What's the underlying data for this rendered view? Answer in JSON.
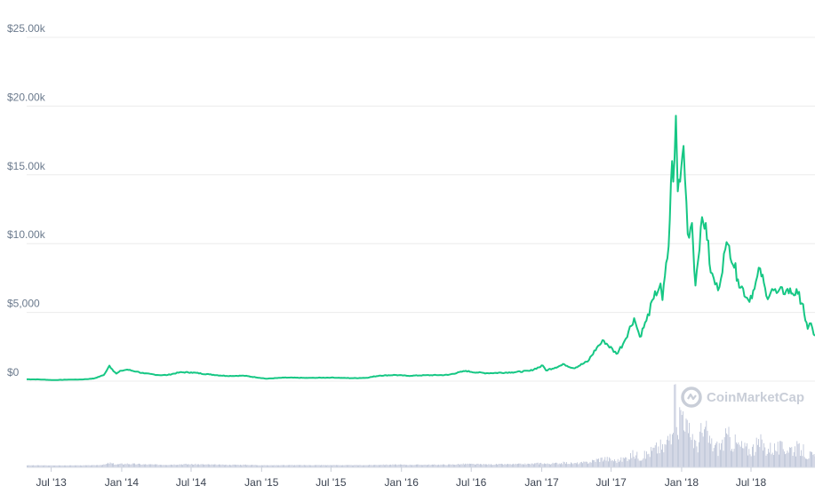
{
  "chart_data": {
    "type": "line",
    "title": "",
    "xlabel": "",
    "ylabel": "",
    "ylim": [
      0,
      25000
    ],
    "y_ticks": [
      {
        "value": 0,
        "label": "$0"
      },
      {
        "value": 5000,
        "label": "$5,000"
      },
      {
        "value": 10000,
        "label": "$10.00k"
      },
      {
        "value": 15000,
        "label": "$15.00k"
      },
      {
        "value": 20000,
        "label": "$20.00k"
      },
      {
        "value": 25000,
        "label": "$25.00k"
      }
    ],
    "x_range": [
      "2013-04-28",
      "2018-12-15"
    ],
    "x_ticks": [
      {
        "date": "2013-07-01",
        "label": "Jul '13"
      },
      {
        "date": "2014-01-01",
        "label": "Jan '14"
      },
      {
        "date": "2014-07-01",
        "label": "Jul '14"
      },
      {
        "date": "2015-01-01",
        "label": "Jan '15"
      },
      {
        "date": "2015-07-01",
        "label": "Jul '15"
      },
      {
        "date": "2016-01-01",
        "label": "Jan '16"
      },
      {
        "date": "2016-07-01",
        "label": "Jul '16"
      },
      {
        "date": "2017-01-01",
        "label": "Jan '17"
      },
      {
        "date": "2017-07-01",
        "label": "Jul '17"
      },
      {
        "date": "2018-01-01",
        "label": "Jan '18"
      },
      {
        "date": "2018-07-01",
        "label": "Jul '18"
      }
    ],
    "grid": true,
    "line_color": "#16c784",
    "volume_color": "#b7bfd4",
    "series": [
      {
        "points": [
          [
            "2013-04-28",
            135
          ],
          [
            "2013-06-01",
            125
          ],
          [
            "2013-07-05",
            80
          ],
          [
            "2013-08-15",
            110
          ],
          [
            "2013-09-20",
            125
          ],
          [
            "2013-10-20",
            190
          ],
          [
            "2013-11-15",
            440
          ],
          [
            "2013-11-30",
            1130
          ],
          [
            "2013-12-07",
            870
          ],
          [
            "2013-12-18",
            550
          ],
          [
            "2013-12-31",
            760
          ],
          [
            "2014-01-15",
            840
          ],
          [
            "2014-02-10",
            690
          ],
          [
            "2014-03-01",
            560
          ],
          [
            "2014-04-10",
            440
          ],
          [
            "2014-05-01",
            450
          ],
          [
            "2014-06-01",
            640
          ],
          [
            "2014-07-01",
            640
          ],
          [
            "2014-08-18",
            490
          ],
          [
            "2014-10-01",
            380
          ],
          [
            "2014-11-15",
            400
          ],
          [
            "2015-01-14",
            180
          ],
          [
            "2015-03-01",
            260
          ],
          [
            "2015-05-01",
            235
          ],
          [
            "2015-07-01",
            260
          ],
          [
            "2015-08-25",
            220
          ],
          [
            "2015-10-01",
            240
          ],
          [
            "2015-11-04",
            400
          ],
          [
            "2015-12-15",
            450
          ],
          [
            "2016-01-15",
            390
          ],
          [
            "2016-03-01",
            430
          ],
          [
            "2016-05-01",
            450
          ],
          [
            "2016-06-17",
            750
          ],
          [
            "2016-07-01",
            670
          ],
          [
            "2016-08-10",
            580
          ],
          [
            "2016-10-15",
            640
          ],
          [
            "2016-12-01",
            750
          ],
          [
            "2017-01-04",
            1130
          ],
          [
            "2017-01-12",
            780
          ],
          [
            "2017-03-01",
            1220
          ],
          [
            "2017-03-25",
            940
          ],
          [
            "2017-05-01",
            1430
          ],
          [
            "2017-05-25",
            2450
          ],
          [
            "2017-06-12",
            2950
          ],
          [
            "2017-07-15",
            1990
          ],
          [
            "2017-08-01",
            2700
          ],
          [
            "2017-08-30",
            4580
          ],
          [
            "2017-09-14",
            3230
          ],
          [
            "2017-10-01",
            4400
          ],
          [
            "2017-10-20",
            6000
          ],
          [
            "2017-11-07",
            7100
          ],
          [
            "2017-11-12",
            5900
          ],
          [
            "2017-11-28",
            9800
          ],
          [
            "2017-12-07",
            16000
          ],
          [
            "2017-12-10",
            14500
          ],
          [
            "2017-12-17",
            19300
          ],
          [
            "2017-12-22",
            13800
          ],
          [
            "2017-12-28",
            14500
          ],
          [
            "2018-01-06",
            17100
          ],
          [
            "2018-01-17",
            10700
          ],
          [
            "2018-01-28",
            11500
          ],
          [
            "2018-02-06",
            6950
          ],
          [
            "2018-02-20",
            11200
          ],
          [
            "2018-03-05",
            11500
          ],
          [
            "2018-03-18",
            7900
          ],
          [
            "2018-04-06",
            6600
          ],
          [
            "2018-04-25",
            9600
          ],
          [
            "2018-05-05",
            9850
          ],
          [
            "2018-05-28",
            7400
          ],
          [
            "2018-06-24",
            5900
          ],
          [
            "2018-07-10",
            6700
          ],
          [
            "2018-07-25",
            8200
          ],
          [
            "2018-08-10",
            6200
          ],
          [
            "2018-08-25",
            6700
          ],
          [
            "2018-09-06",
            6400
          ],
          [
            "2018-10-01",
            6600
          ],
          [
            "2018-10-31",
            6350
          ],
          [
            "2018-11-14",
            5600
          ],
          [
            "2018-11-20",
            4400
          ],
          [
            "2018-11-26",
            3800
          ],
          [
            "2018-12-01",
            4200
          ],
          [
            "2018-12-15",
            3300
          ]
        ]
      }
    ]
  },
  "watermark": {
    "text": "CoinMarketCap",
    "icon": "coinmarketcap-logo-icon"
  }
}
